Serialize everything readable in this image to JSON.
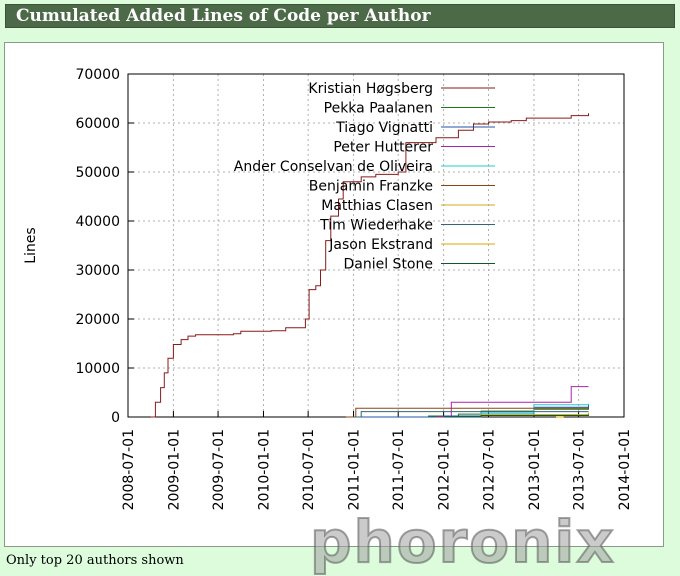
{
  "header": {
    "title": "Cumulated Added Lines of Code per Author"
  },
  "footnote": "Only top 20 authors shown",
  "watermark": "phoronix",
  "chart_data": {
    "type": "line",
    "title": "Cumulated Added Lines of Code per Author",
    "ylabel": "Lines",
    "xlabel": "",
    "ylim": [
      0,
      70000
    ],
    "xlim": [
      "2008-07-01",
      "2014-01-01"
    ],
    "yticks": [
      0,
      10000,
      20000,
      30000,
      40000,
      50000,
      60000,
      70000
    ],
    "xticks": [
      "2008-07-01",
      "2009-01-01",
      "2009-07-01",
      "2010-01-01",
      "2010-07-01",
      "2011-01-01",
      "2011-07-01",
      "2012-01-01",
      "2012-07-01",
      "2013-01-01",
      "2013-07-01",
      "2014-01-01"
    ],
    "legend_position": "top-right",
    "grid": true,
    "series": [
      {
        "name": "Kristian Høgsberg",
        "color": "#8b1a1a",
        "points": [
          [
            "2008-10-01",
            0
          ],
          [
            "2008-10-20",
            3000
          ],
          [
            "2008-11-10",
            6000
          ],
          [
            "2008-11-25",
            9000
          ],
          [
            "2008-12-10",
            12000
          ],
          [
            "2009-01-01",
            14800
          ],
          [
            "2009-02-01",
            15800
          ],
          [
            "2009-03-01",
            16500
          ],
          [
            "2009-04-01",
            16800
          ],
          [
            "2009-09-01",
            17000
          ],
          [
            "2009-10-01",
            17500
          ],
          [
            "2010-02-01",
            17600
          ],
          [
            "2010-04-01",
            18200
          ],
          [
            "2010-06-20",
            20000
          ],
          [
            "2010-07-05",
            26000
          ],
          [
            "2010-08-01",
            26800
          ],
          [
            "2010-08-20",
            30000
          ],
          [
            "2010-09-10",
            36000
          ],
          [
            "2010-10-01",
            41000
          ],
          [
            "2010-11-01",
            44500
          ],
          [
            "2010-11-20",
            48000
          ],
          [
            "2011-02-01",
            49000
          ],
          [
            "2011-04-01",
            49500
          ],
          [
            "2011-07-01",
            50000
          ],
          [
            "2011-08-01",
            56000
          ],
          [
            "2011-12-01",
            57000
          ],
          [
            "2012-03-01",
            58500
          ],
          [
            "2012-05-01",
            59800
          ],
          [
            "2012-07-01",
            60200
          ],
          [
            "2012-10-01",
            60500
          ],
          [
            "2012-12-01",
            61000
          ],
          [
            "2013-06-01",
            61500
          ],
          [
            "2013-08-10",
            62000
          ]
        ]
      },
      {
        "name": "Pekka Paalanen",
        "color": "#1a7a1a",
        "points": [
          [
            "2011-01-01",
            0
          ],
          [
            "2011-11-01",
            200
          ],
          [
            "2012-03-01",
            600
          ],
          [
            "2012-06-01",
            1200
          ],
          [
            "2013-01-01",
            1600
          ],
          [
            "2013-08-10",
            2000
          ]
        ]
      },
      {
        "name": "Tiago Vignatti",
        "color": "#2255aa",
        "points": [
          [
            "2011-01-01",
            0
          ],
          [
            "2012-01-01",
            200
          ],
          [
            "2012-06-01",
            800
          ],
          [
            "2013-01-01",
            2000
          ],
          [
            "2013-08-10",
            2600
          ]
        ]
      },
      {
        "name": "Peter Hutterer",
        "color": "#aa22aa",
        "points": [
          [
            "2011-12-01",
            0
          ],
          [
            "2012-02-01",
            3000
          ],
          [
            "2013-05-15",
            3000
          ],
          [
            "2013-06-01",
            6200
          ],
          [
            "2013-08-10",
            6200
          ]
        ]
      },
      {
        "name": "Ander Conselvan de Oliveira",
        "color": "#22cccc",
        "points": [
          [
            "2012-01-01",
            0
          ],
          [
            "2012-06-01",
            800
          ],
          [
            "2013-01-01",
            2500
          ],
          [
            "2013-08-10",
            2700
          ]
        ]
      },
      {
        "name": "Benjamin Franzke",
        "color": "#8b4513",
        "points": [
          [
            "2010-12-01",
            0
          ],
          [
            "2011-01-10",
            1800
          ],
          [
            "2013-08-10",
            1800
          ]
        ]
      },
      {
        "name": "Matthias Clasen",
        "color": "#ccaa22",
        "points": [
          [
            "2012-05-01",
            0
          ],
          [
            "2012-06-01",
            500
          ],
          [
            "2013-08-10",
            700
          ]
        ]
      },
      {
        "name": "Tim Wiederhake",
        "color": "#336677",
        "points": [
          [
            "2011-01-01",
            0
          ],
          [
            "2011-02-01",
            1100
          ],
          [
            "2013-08-10",
            1100
          ]
        ]
      },
      {
        "name": "Jason Ekstrand",
        "color": "#ddaa00",
        "points": [
          [
            "2013-04-01",
            0
          ],
          [
            "2013-05-01",
            400
          ],
          [
            "2013-08-10",
            900
          ]
        ]
      },
      {
        "name": "Daniel Stone",
        "color": "#115533",
        "points": [
          [
            "2012-01-01",
            0
          ],
          [
            "2012-06-01",
            300
          ],
          [
            "2013-08-10",
            500
          ]
        ]
      }
    ]
  }
}
